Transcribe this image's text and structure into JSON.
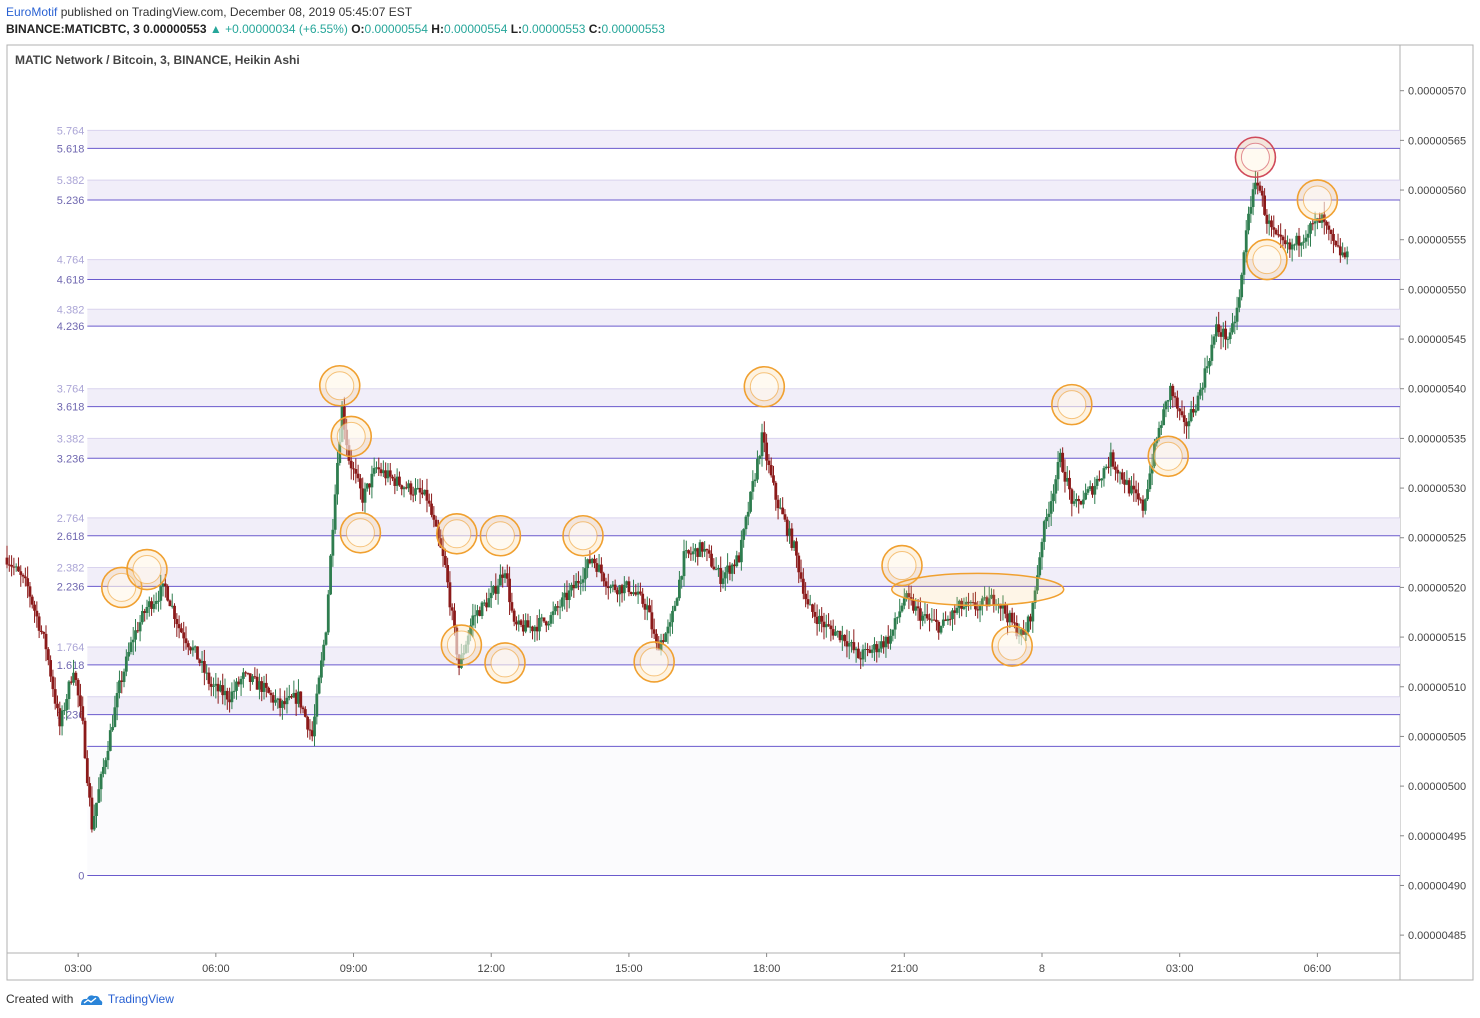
{
  "header": {
    "author": "EuroMotif",
    "published_text": "published on TradingView.com, December 08, 2019 05:45:07 EST",
    "symbol": "BINANCE:MATICBTC, 3",
    "last": "0.00000553",
    "change": "▲ +0.00000034 (+6.55%)",
    "o_label": "O:",
    "o_value": "0.00000554",
    "h_label": "H:",
    "h_value": "0.00000554",
    "l_label": "L:",
    "l_value": "0.00000553",
    "c_label": "C:",
    "c_value": "0.00000553"
  },
  "footer": {
    "created_with": "Created with",
    "brand": "TradingView"
  },
  "colors": {
    "up": "#2e7d4f",
    "down": "#8b1a1a",
    "fib_line": "#6a5acd",
    "fib_band": "#f1eef9",
    "fib_label": "#8e86c9",
    "circle": "#f0a030",
    "circle_top": "#d04a5a"
  },
  "chart_data": {
    "type": "candlestick",
    "title": "MATIC Network / Bitcoin, 3, BINANCE, Heikin Ashi",
    "price_axis_labels": [
      "0.00000570",
      "0.00000565",
      "0.00000560",
      "0.00000555",
      "0.00000550",
      "0.00000545",
      "0.00000540",
      "0.00000535",
      "0.00000530",
      "0.00000525",
      "0.00000520",
      "0.00000515",
      "0.00000510",
      "0.00000505",
      "0.00000500",
      "0.00000495",
      "0.00000490",
      "0.00000485"
    ],
    "price_axis_values": [
      570,
      565,
      560,
      555,
      550,
      545,
      540,
      535,
      530,
      525,
      520,
      515,
      510,
      505,
      500,
      495,
      490,
      485
    ],
    "price_unit": "1e-8 BTC",
    "ylim": [
      483.2,
      574.6
    ],
    "time_axis_labels": [
      "03:00",
      "06:00",
      "09:00",
      "12:00",
      "15:00",
      "18:00",
      "21:00",
      "8",
      "03:00",
      "06:00"
    ],
    "time_axis_hours": [
      3,
      6,
      9,
      12,
      15,
      18,
      21,
      24,
      27,
      30
    ],
    "xlim_hours": [
      1.45,
      31.8
    ],
    "fib_levels": [
      {
        "label": "5.764",
        "price": 566.0,
        "kind": "band"
      },
      {
        "label": "5.618",
        "price": 564.2,
        "kind": "line"
      },
      {
        "label": "5.382",
        "price": 561.0,
        "kind": "band"
      },
      {
        "label": "5.236",
        "price": 559.0,
        "kind": "line"
      },
      {
        "label": "4.764",
        "price": 553.0,
        "kind": "band"
      },
      {
        "label": "4.618",
        "price": 551.0,
        "kind": "line"
      },
      {
        "label": "4.382",
        "price": 548.0,
        "kind": "band"
      },
      {
        "label": "4.236",
        "price": 546.3,
        "kind": "line"
      },
      {
        "label": "3.764",
        "price": 540.0,
        "kind": "band"
      },
      {
        "label": "3.618",
        "price": 538.2,
        "kind": "line"
      },
      {
        "label": "3.382",
        "price": 535.0,
        "kind": "band"
      },
      {
        "label": "3.236",
        "price": 533.0,
        "kind": "line"
      },
      {
        "label": "2.764",
        "price": 527.0,
        "kind": "band"
      },
      {
        "label": "2.618",
        "price": 525.2,
        "kind": "line"
      },
      {
        "label": "2.382",
        "price": 522.0,
        "kind": "band"
      },
      {
        "label": "2.236",
        "price": 520.1,
        "kind": "line"
      },
      {
        "label": "1.764",
        "price": 514.0,
        "kind": "band"
      },
      {
        "label": "1.618",
        "price": 512.2,
        "kind": "line"
      },
      {
        "label": "",
        "price": 509.0,
        "kind": "band"
      },
      {
        "label": "1.236",
        "price": 507.2,
        "kind": "line"
      },
      {
        "label": "",
        "price": 504.0,
        "kind": "line"
      },
      {
        "label": "0",
        "price": 491.0,
        "kind": "line"
      }
    ],
    "fib_x_start_hours": 3.2,
    "series_anchors": [
      [
        1.45,
        523
      ],
      [
        1.9,
        520
      ],
      [
        2.3,
        514
      ],
      [
        2.6,
        506
      ],
      [
        2.9,
        512
      ],
      [
        3.1,
        506
      ],
      [
        3.3,
        496
      ],
      [
        3.6,
        503
      ],
      [
        3.9,
        510
      ],
      [
        4.2,
        515
      ],
      [
        4.5,
        518
      ],
      [
        4.9,
        520
      ],
      [
        5.2,
        516
      ],
      [
        5.6,
        513
      ],
      [
        5.9,
        510
      ],
      [
        6.3,
        509
      ],
      [
        6.6,
        511
      ],
      [
        7.0,
        510
      ],
      [
        7.4,
        508
      ],
      [
        7.8,
        509
      ],
      [
        8.1,
        505
      ],
      [
        8.4,
        516
      ],
      [
        8.6,
        530
      ],
      [
        8.75,
        538
      ],
      [
        8.9,
        533
      ],
      [
        9.2,
        529
      ],
      [
        9.5,
        532
      ],
      [
        9.8,
        531
      ],
      [
        10.2,
        530
      ],
      [
        10.6,
        529
      ],
      [
        11.0,
        522
      ],
      [
        11.3,
        512
      ],
      [
        11.6,
        517
      ],
      [
        12.0,
        519
      ],
      [
        12.3,
        522
      ],
      [
        12.5,
        516
      ],
      [
        12.9,
        516
      ],
      [
        13.3,
        517
      ],
      [
        13.8,
        520
      ],
      [
        14.2,
        523
      ],
      [
        14.6,
        520
      ],
      [
        15.0,
        520
      ],
      [
        15.4,
        518
      ],
      [
        15.6,
        514
      ],
      [
        15.9,
        516
      ],
      [
        16.2,
        523
      ],
      [
        16.6,
        524
      ],
      [
        17.0,
        521
      ],
      [
        17.4,
        523
      ],
      [
        17.9,
        535
      ],
      [
        18.2,
        529
      ],
      [
        18.6,
        524
      ],
      [
        18.9,
        518
      ],
      [
        19.3,
        516
      ],
      [
        19.7,
        515
      ],
      [
        20.0,
        513
      ],
      [
        20.4,
        514
      ],
      [
        20.7,
        515
      ],
      [
        21.0,
        519
      ],
      [
        21.4,
        517
      ],
      [
        21.8,
        516
      ],
      [
        22.2,
        518
      ],
      [
        22.6,
        518
      ],
      [
        23.0,
        519
      ],
      [
        23.4,
        516
      ],
      [
        23.6,
        515
      ],
      [
        23.8,
        518
      ],
      [
        24.0,
        525
      ],
      [
        24.4,
        533
      ],
      [
        24.7,
        528
      ],
      [
        25.1,
        530
      ],
      [
        25.5,
        533
      ],
      [
        25.9,
        530
      ],
      [
        26.2,
        528
      ],
      [
        26.5,
        535
      ],
      [
        26.8,
        540
      ],
      [
        27.1,
        536
      ],
      [
        27.4,
        539
      ],
      [
        27.8,
        546
      ],
      [
        28.1,
        545
      ],
      [
        28.3,
        549
      ],
      [
        28.5,
        558
      ],
      [
        28.7,
        561
      ],
      [
        28.9,
        557
      ],
      [
        29.1,
        555
      ],
      [
        29.4,
        554
      ],
      [
        29.8,
        556
      ],
      [
        30.1,
        557
      ],
      [
        30.4,
        554
      ],
      [
        30.7,
        553
      ]
    ],
    "candle_interval_minutes": 3,
    "annotations": [
      {
        "shape": "circle",
        "t": 3.95,
        "price": 520.0
      },
      {
        "shape": "circle",
        "t": 4.5,
        "price": 521.8
      },
      {
        "shape": "circle",
        "t": 8.7,
        "price": 540.3
      },
      {
        "shape": "circle",
        "t": 8.95,
        "price": 535.2
      },
      {
        "shape": "circle",
        "t": 9.15,
        "price": 525.5
      },
      {
        "shape": "circle",
        "t": 11.25,
        "price": 525.4
      },
      {
        "shape": "circle",
        "t": 11.35,
        "price": 514.2
      },
      {
        "shape": "circle",
        "t": 12.2,
        "price": 525.2
      },
      {
        "shape": "circle",
        "t": 12.3,
        "price": 512.4
      },
      {
        "shape": "circle",
        "t": 14.0,
        "price": 525.2
      },
      {
        "shape": "circle",
        "t": 15.55,
        "price": 512.5
      },
      {
        "shape": "circle",
        "t": 17.95,
        "price": 540.2
      },
      {
        "shape": "circle",
        "t": 20.95,
        "price": 522.2
      },
      {
        "shape": "ellipse",
        "t": 22.6,
        "price": 519.8
      },
      {
        "shape": "circle",
        "t": 23.35,
        "price": 514.1
      },
      {
        "shape": "circle",
        "t": 24.65,
        "price": 538.4
      },
      {
        "shape": "circle",
        "t": 26.75,
        "price": 533.2
      },
      {
        "shape": "circle_top",
        "t": 28.65,
        "price": 563.3
      },
      {
        "shape": "circle",
        "t": 28.9,
        "price": 553.0
      },
      {
        "shape": "circle",
        "t": 30.0,
        "price": 559.0
      }
    ]
  }
}
